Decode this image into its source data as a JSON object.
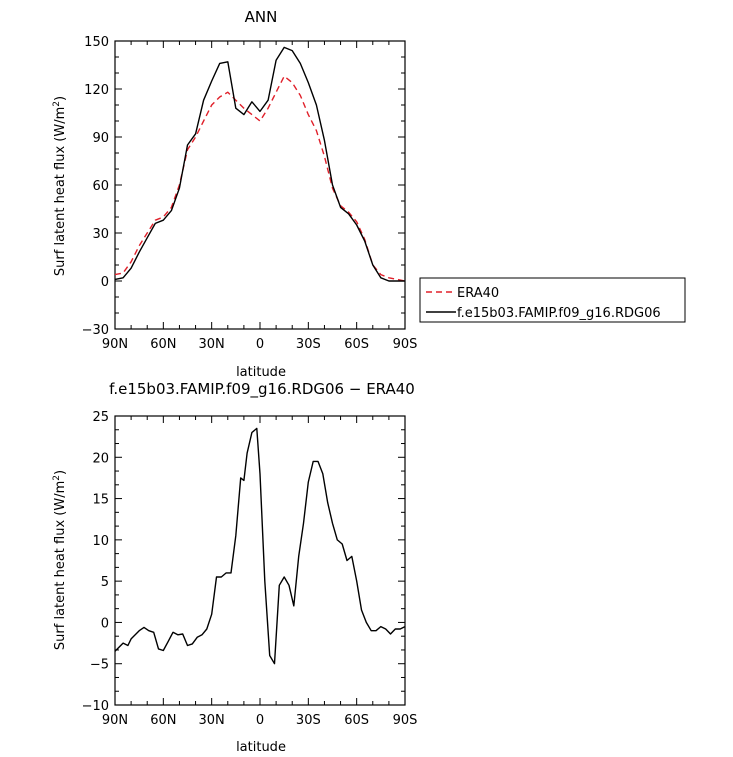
{
  "chart_data": [
    {
      "type": "line",
      "title": "ANN",
      "xlabel": "latitude",
      "ylabel": "Surf latent heat flux (W/m²)",
      "xlim": [
        -90,
        90
      ],
      "ylim": [
        -30,
        150
      ],
      "yticks": [
        -30,
        0,
        30,
        60,
        90,
        120,
        150
      ],
      "xticks": [
        -90,
        -60,
        -30,
        0,
        30,
        60,
        90
      ],
      "xtick_labels": [
        "90N",
        "60N",
        "30N",
        "0",
        "30S",
        "60S",
        "90S"
      ],
      "legend": "right-outside",
      "series": [
        {
          "name": "ERA40",
          "color": "#e0202a",
          "dash": "dashed",
          "x": [
            -90,
            -85,
            -80,
            -75,
            -70,
            -65,
            -60,
            -55,
            -50,
            -45,
            -40,
            -35,
            -30,
            -25,
            -20,
            -15,
            -10,
            -5,
            0,
            5,
            10,
            15,
            20,
            25,
            30,
            35,
            40,
            45,
            50,
            55,
            60,
            65,
            70,
            75,
            80,
            85,
            90
          ],
          "y": [
            4,
            5,
            12,
            22,
            30,
            38,
            40,
            46,
            60,
            82,
            90,
            100,
            110,
            115,
            118,
            113,
            108,
            104,
            100,
            108,
            118,
            128,
            124,
            116,
            104,
            94,
            78,
            58,
            47,
            43,
            37,
            26,
            10,
            4,
            2,
            1,
            0
          ]
        },
        {
          "name": "f.e15b03.FAMIP.f09_g16.RDG06",
          "color": "#000000",
          "dash": "solid",
          "x": [
            -90,
            -85,
            -80,
            -75,
            -70,
            -65,
            -60,
            -55,
            -50,
            -45,
            -40,
            -35,
            -30,
            -25,
            -20,
            -15,
            -10,
            -5,
            0,
            5,
            10,
            15,
            20,
            25,
            30,
            35,
            40,
            45,
            50,
            55,
            60,
            65,
            70,
            75,
            80,
            85,
            90
          ],
          "y": [
            1,
            2,
            8,
            18,
            27,
            36,
            38,
            44,
            58,
            85,
            92,
            113,
            125,
            136,
            137,
            108,
            104,
            112,
            106,
            113,
            138,
            146,
            144,
            136,
            124,
            110,
            88,
            60,
            46,
            42,
            35,
            25,
            10,
            2,
            0,
            0,
            0
          ]
        }
      ]
    },
    {
      "type": "line",
      "title": "f.e15b03.FAMIP.f09_g16.RDG06 − ERA40",
      "xlabel": "latitude",
      "ylabel": "Surf latent heat flux (W/m²)",
      "xlim": [
        -90,
        90
      ],
      "ylim": [
        -10,
        25
      ],
      "yticks": [
        -10,
        -5,
        0,
        5,
        10,
        15,
        20,
        25
      ],
      "xticks": [
        -90,
        -60,
        -30,
        0,
        30,
        60,
        90
      ],
      "xtick_labels": [
        "90N",
        "60N",
        "30N",
        "0",
        "30S",
        "60S",
        "90S"
      ],
      "series": [
        {
          "color": "#000000",
          "dash": "solid",
          "x": [
            -90,
            -85,
            -82,
            -80,
            -75,
            -72,
            -69,
            -66,
            -63,
            -60,
            -57,
            -54,
            -51,
            -48,
            -45,
            -42,
            -39,
            -36,
            -33,
            -30,
            -27,
            -24,
            -21,
            -18,
            -15,
            -12,
            -10,
            -8,
            -5,
            -2,
            0,
            3,
            6,
            9,
            12,
            15,
            18,
            21,
            24,
            27,
            30,
            33,
            36,
            39,
            42,
            45,
            48,
            51,
            54,
            57,
            60,
            63,
            66,
            69,
            72,
            75,
            78,
            81,
            84,
            87,
            90
          ],
          "y": [
            -3.5,
            -2.5,
            -2.8,
            -2,
            -1,
            -0.6,
            -1,
            -1.2,
            -3.2,
            -3.4,
            -2.3,
            -1.2,
            -1.5,
            -1.4,
            -2.8,
            -2.6,
            -1.8,
            -1.5,
            -0.8,
            1,
            5.5,
            5.5,
            6,
            6,
            10.5,
            17.5,
            17.2,
            20.5,
            23,
            23.5,
            18,
            5,
            -4,
            -5,
            4.5,
            5.5,
            4.5,
            2,
            8,
            12,
            17,
            19.5,
            19.5,
            18,
            14.5,
            12,
            10,
            9.5,
            7.5,
            8,
            5,
            1.5,
            0,
            -1,
            -1,
            -0.5,
            -0.8,
            -1.4,
            -0.8,
            -0.8,
            -0.5
          ]
        }
      ]
    }
  ]
}
